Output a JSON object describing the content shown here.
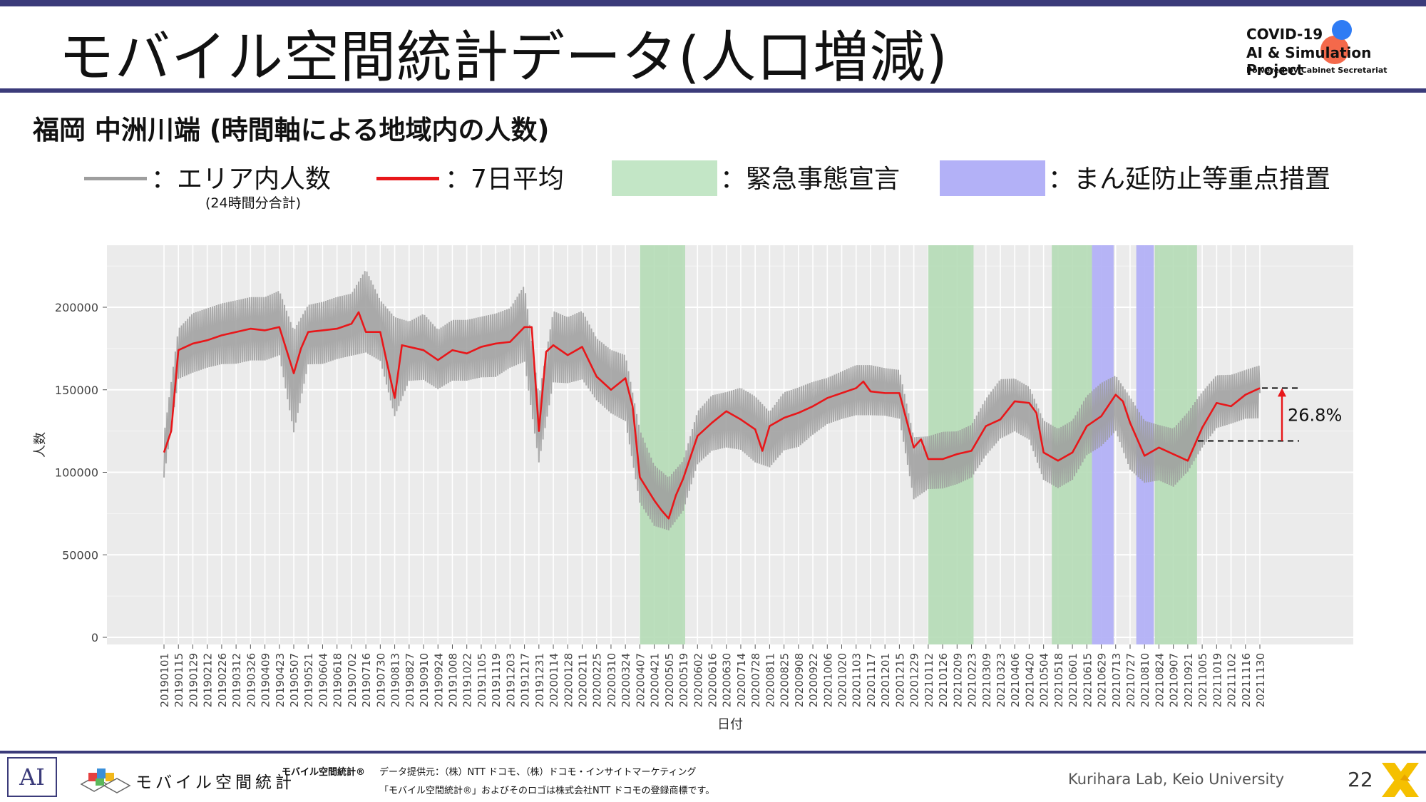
{
  "header": {
    "title": "モバイル空間統計データ(人口増減)",
    "logo_line1": "COVID-19",
    "logo_line2": "AI & Simulation Project",
    "logo_line3": "Powered by Cabinet Secretariat"
  },
  "subtitle": "福岡 中洲川端 (時間軸による地域内の人数)",
  "legend": {
    "raw_label": "：エリア内人数",
    "raw_sub": "(24時間分合計)",
    "avg_label": "：7日平均",
    "emergency_label": "：緊急事態宣言",
    "priority_label": "：まん延防止等重点措置"
  },
  "colors": {
    "accent": "#3b3b7a",
    "raw_line": "#9e9e9e",
    "avg_line": "#e8171a",
    "emergency": "#b5dbb6",
    "priority": "#b3b1f7",
    "panel": "#ebebeb"
  },
  "chart_data": {
    "type": "line",
    "xlabel": "日付",
    "ylabel": "人数",
    "ylim": [
      0,
      235000
    ],
    "yticks": [
      0,
      50000,
      100000,
      150000,
      200000
    ],
    "ytick_labels": [
      "0",
      "50000",
      "100000",
      "150000",
      "200000"
    ],
    "grid": true,
    "xtick_labels": [
      "20190101",
      "20190115",
      "20190129",
      "20190212",
      "20190226",
      "20190312",
      "20190326",
      "20190409",
      "20190423",
      "20190507",
      "20190521",
      "20190604",
      "20190618",
      "20190702",
      "20190716",
      "20190730",
      "20190813",
      "20190827",
      "20190910",
      "20190924",
      "20191008",
      "20191022",
      "20191105",
      "20191119",
      "20191203",
      "20191217",
      "20191231",
      "20200114",
      "20200128",
      "20200211",
      "20200225",
      "20200310",
      "20200324",
      "20200407",
      "20200421",
      "20200505",
      "20200519",
      "20200602",
      "20200616",
      "20200630",
      "20200714",
      "20200728",
      "20200811",
      "20200825",
      "20200908",
      "20200922",
      "20201006",
      "20201020",
      "20201103",
      "20201117",
      "20201201",
      "20201215",
      "20201229",
      "20210112",
      "20210126",
      "20210209",
      "20210223",
      "20210309",
      "20210323",
      "20210406",
      "20210420",
      "20210504",
      "20210518",
      "20210601",
      "20210615",
      "20210629",
      "20210713",
      "20210727",
      "20210810",
      "20210824",
      "20210907",
      "20210921",
      "20211005",
      "20211019",
      "20211102",
      "20211116",
      "20211130"
    ],
    "series": [
      {
        "key": "avg",
        "x": [
          "20190101",
          "20190108",
          "20190115",
          "20190129",
          "20190212",
          "20190226",
          "20190312",
          "20190326",
          "20190409",
          "20190423",
          "20190507",
          "20190514",
          "20190521",
          "20190604",
          "20190618",
          "20190702",
          "20190709",
          "20190716",
          "20190730",
          "20190813",
          "20190820",
          "20190827",
          "20190910",
          "20190924",
          "20191008",
          "20191022",
          "20191105",
          "20191119",
          "20191203",
          "20191217",
          "20191224",
          "20191231",
          "20200107",
          "20200114",
          "20200128",
          "20200211",
          "20200225",
          "20200310",
          "20200324",
          "20200331",
          "20200407",
          "20200414",
          "20200421",
          "20200428",
          "20200505",
          "20200512",
          "20200519",
          "20200602",
          "20200616",
          "20200630",
          "20200714",
          "20200728",
          "20200804",
          "20200811",
          "20200825",
          "20200908",
          "20200922",
          "20201006",
          "20201020",
          "20201103",
          "20201110",
          "20201117",
          "20201201",
          "20201215",
          "20201229",
          "20210105",
          "20210112",
          "20210126",
          "20210209",
          "20210223",
          "20210309",
          "20210323",
          "20210406",
          "20210420",
          "20210427",
          "20210504",
          "20210518",
          "20210601",
          "20210615",
          "20210629",
          "20210713",
          "20210720",
          "20210727",
          "20210810",
          "20210824",
          "20210907",
          "20210921",
          "20211005",
          "20211019",
          "20211102",
          "20211116",
          "20211130"
        ],
        "values": [
          112000,
          125000,
          174000,
          178000,
          180000,
          183000,
          185000,
          187000,
          186000,
          188000,
          160000,
          175000,
          185000,
          186000,
          187000,
          190000,
          197000,
          185000,
          185000,
          145000,
          177000,
          176000,
          174000,
          168000,
          174000,
          172000,
          176000,
          178000,
          179000,
          188000,
          188000,
          125000,
          173000,
          177000,
          171000,
          176000,
          158000,
          150000,
          157000,
          140000,
          97000,
          90000,
          83000,
          77000,
          72000,
          86000,
          96000,
          122000,
          130000,
          137000,
          132000,
          126000,
          113000,
          128000,
          133000,
          136000,
          140000,
          145000,
          148000,
          151000,
          155000,
          149000,
          148000,
          148000,
          115000,
          120000,
          108000,
          108000,
          111000,
          113000,
          128000,
          132000,
          143000,
          142000,
          136000,
          112000,
          107000,
          112000,
          128000,
          134000,
          147000,
          143000,
          130000,
          110000,
          115000,
          111000,
          107000,
          127000,
          142000,
          140000,
          147000,
          151000
        ]
      },
      {
        "key": "raw",
        "x": [
          "20190101",
          "20190115",
          "20190129",
          "20190212",
          "20190226",
          "20190312",
          "20190326",
          "20190409",
          "20190423",
          "20190507",
          "20190521",
          "20190604",
          "20190618",
          "20190702",
          "20190716",
          "20190730",
          "20190813",
          "20190827",
          "20190910",
          "20190924",
          "20191008",
          "20191022",
          "20191105",
          "20191119",
          "20191203",
          "20191217",
          "20191231",
          "20200114",
          "20200128",
          "20200211",
          "20200225",
          "20200310",
          "20200324",
          "20200407",
          "20200421",
          "20200505",
          "20200519",
          "20200602",
          "20200616",
          "20200630",
          "20200714",
          "20200728",
          "20200811",
          "20200825",
          "20200908",
          "20200922",
          "20201006",
          "20201020",
          "20201103",
          "20201117",
          "20201201",
          "20201215",
          "20201229",
          "20210112",
          "20210126",
          "20210209",
          "20210223",
          "20210309",
          "20210323",
          "20210406",
          "20210420",
          "20210504",
          "20210518",
          "20210601",
          "20210615",
          "20210629",
          "20210713",
          "20210727",
          "20210810",
          "20210824",
          "20210907",
          "20210921",
          "20211005",
          "20211019",
          "20211102",
          "20211116",
          "20211130"
        ],
        "low": [
          93000,
          152000,
          155000,
          158000,
          160000,
          160000,
          162000,
          162000,
          165000,
          115000,
          160000,
          160000,
          163000,
          165000,
          165000,
          162000,
          125000,
          150000,
          150000,
          145000,
          150000,
          150000,
          152000,
          152000,
          158000,
          160000,
          100000,
          148000,
          148000,
          150000,
          138000,
          130000,
          125000,
          75000,
          62000,
          60000,
          72000,
          100000,
          108000,
          110000,
          108000,
          100000,
          98000,
          108000,
          110000,
          118000,
          125000,
          128000,
          130000,
          130000,
          130000,
          128000,
          78000,
          85000,
          85000,
          88000,
          92000,
          105000,
          115000,
          120000,
          115000,
          90000,
          85000,
          90000,
          105000,
          110000,
          120000,
          95000,
          88000,
          90000,
          86000,
          95000,
          110000,
          122000,
          125000,
          128000,
          128000
        ],
        "high": [
          125000,
          190000,
          200000,
          203000,
          206000,
          208000,
          210000,
          210000,
          214000,
          192000,
          205000,
          207000,
          210000,
          212000,
          228000,
          208000,
          200000,
          195000,
          200000,
          190000,
          196000,
          196000,
          198000,
          200000,
          203000,
          218000,
          150000,
          202000,
          198000,
          202000,
          185000,
          178000,
          175000,
          130000,
          108000,
          100000,
          110000,
          140000,
          150000,
          152000,
          155000,
          150000,
          140000,
          152000,
          155000,
          158000,
          160000,
          164000,
          168000,
          168000,
          166000,
          165000,
          125000,
          125000,
          128000,
          128000,
          132000,
          148000,
          160000,
          160000,
          155000,
          135000,
          130000,
          135000,
          150000,
          158000,
          162000,
          150000,
          135000,
          132000,
          130000,
          140000,
          152000,
          162000,
          162000,
          165000,
          168000
        ]
      }
    ],
    "emergency_periods": [
      [
        "20200407",
        "20200521"
      ],
      [
        "20210112",
        "20210225"
      ],
      [
        "20210512",
        "20210620"
      ],
      [
        "20210820",
        "20210930"
      ]
    ],
    "priority_periods": [
      [
        "20210620",
        "20210711"
      ],
      [
        "20210802",
        "20210819"
      ]
    ],
    "annotation": {
      "text": "26.8%",
      "from_value": 119000,
      "to_value": 151000
    }
  },
  "footer": {
    "ai_mark": "AI",
    "logo_text": "モバイル空間統計",
    "trademark_name": "モバイル空間統計®",
    "provider": "データ提供元：（株）NTT ドコモ、（株）ドコモ・インサイトマーケティング",
    "trademark_note": "「モバイル空間統計®」およびそのロゴは株式会社NTT ドコモの登録商標です。",
    "lab": "Kurihara Lab, Keio University",
    "page": "22"
  }
}
